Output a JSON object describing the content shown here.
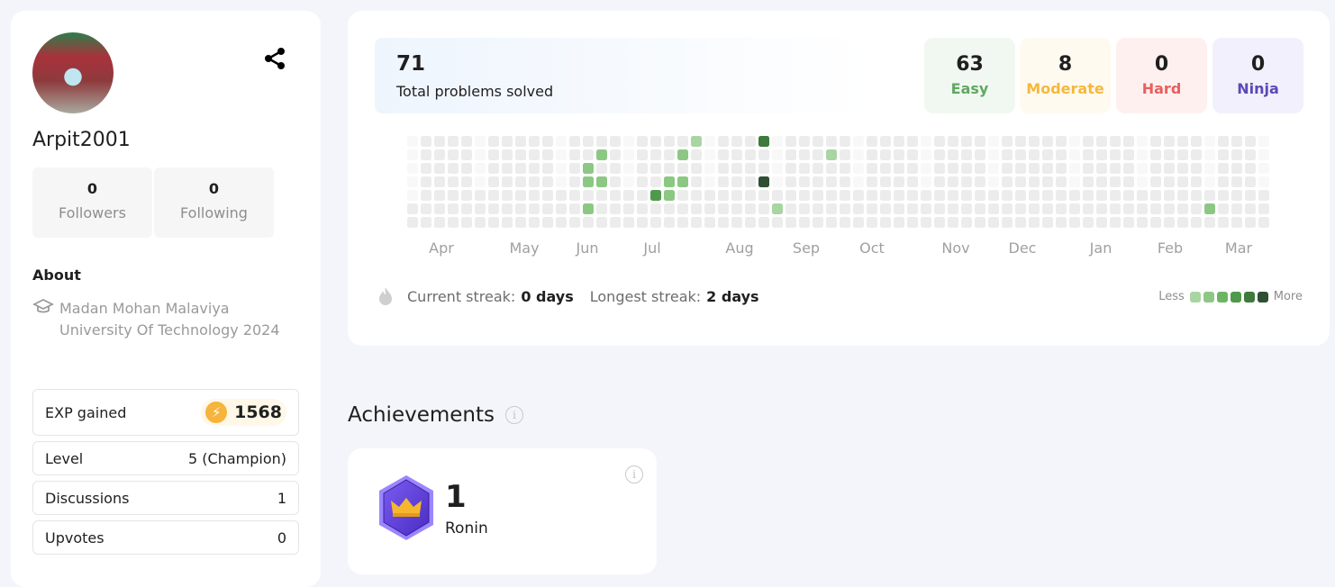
{
  "profile": {
    "username": "Arpit2001",
    "followers": {
      "count": "0",
      "label": "Followers"
    },
    "following": {
      "count": "0",
      "label": "Following"
    },
    "about_label": "About",
    "education": "Madan Mohan Malaviya University Of Technology 2024"
  },
  "stats": {
    "exp": {
      "label": "EXP gained",
      "value": "1568"
    },
    "level": {
      "label": "Level",
      "value": "5 (Champion)"
    },
    "discussions": {
      "label": "Discussions",
      "value": "1"
    },
    "upvotes": {
      "label": "Upvotes",
      "value": "0"
    }
  },
  "problems": {
    "total": "71",
    "total_label": "Total problems solved",
    "difficulty": [
      {
        "count": "63",
        "label": "Easy",
        "color": "#5fa862",
        "bg": "#f1f8f1"
      },
      {
        "count": "8",
        "label": "Moderate",
        "color": "#f5b83d",
        "bg": "#fffaef"
      },
      {
        "count": "0",
        "label": "Hard",
        "color": "#e85f5c",
        "bg": "#fff0f0"
      },
      {
        "count": "0",
        "label": "Ninja",
        "color": "#5b48b8",
        "bg": "#f1f0fc"
      }
    ]
  },
  "chart_data": {
    "type": "heatmap",
    "months": [
      "Apr",
      "May",
      "Jun",
      "Jul",
      "Aug",
      "Sep",
      "Oct",
      "Nov",
      "Dec",
      "Jan",
      "Feb",
      "Mar"
    ],
    "level_colors": [
      "#a8d5a2",
      "#8cc884",
      "#6db563",
      "#4f9a4a",
      "#3d7a3c",
      "#2f4f34"
    ],
    "empty_color": "#ececec",
    "active_cells": [
      {
        "week": 21,
        "day": 0,
        "level": 1
      },
      {
        "week": 26,
        "day": 0,
        "level": 5
      },
      {
        "week": 14,
        "day": 1,
        "level": 2
      },
      {
        "week": 20,
        "day": 1,
        "level": 2
      },
      {
        "week": 31,
        "day": 1,
        "level": 1
      },
      {
        "week": 13,
        "day": 2,
        "level": 2
      },
      {
        "week": 13,
        "day": 3,
        "level": 2
      },
      {
        "week": 14,
        "day": 3,
        "level": 2
      },
      {
        "week": 19,
        "day": 3,
        "level": 2
      },
      {
        "week": 20,
        "day": 3,
        "level": 2
      },
      {
        "week": 26,
        "day": 3,
        "level": 6
      },
      {
        "week": 18,
        "day": 4,
        "level": 4
      },
      {
        "week": 19,
        "day": 4,
        "level": 2
      },
      {
        "week": 13,
        "day": 5,
        "level": 2
      },
      {
        "week": 27,
        "day": 5,
        "level": 1
      },
      {
        "week": 59,
        "day": 5,
        "level": 2
      }
    ]
  },
  "streak": {
    "current_label": "Current streak:",
    "current": "0 days",
    "longest_label": "Longest streak:",
    "longest": "2 days"
  },
  "legend": {
    "less": "Less",
    "more": "More"
  },
  "achievements": {
    "title": "Achievements",
    "items": [
      {
        "count": "1",
        "label": "Ronin"
      }
    ]
  }
}
